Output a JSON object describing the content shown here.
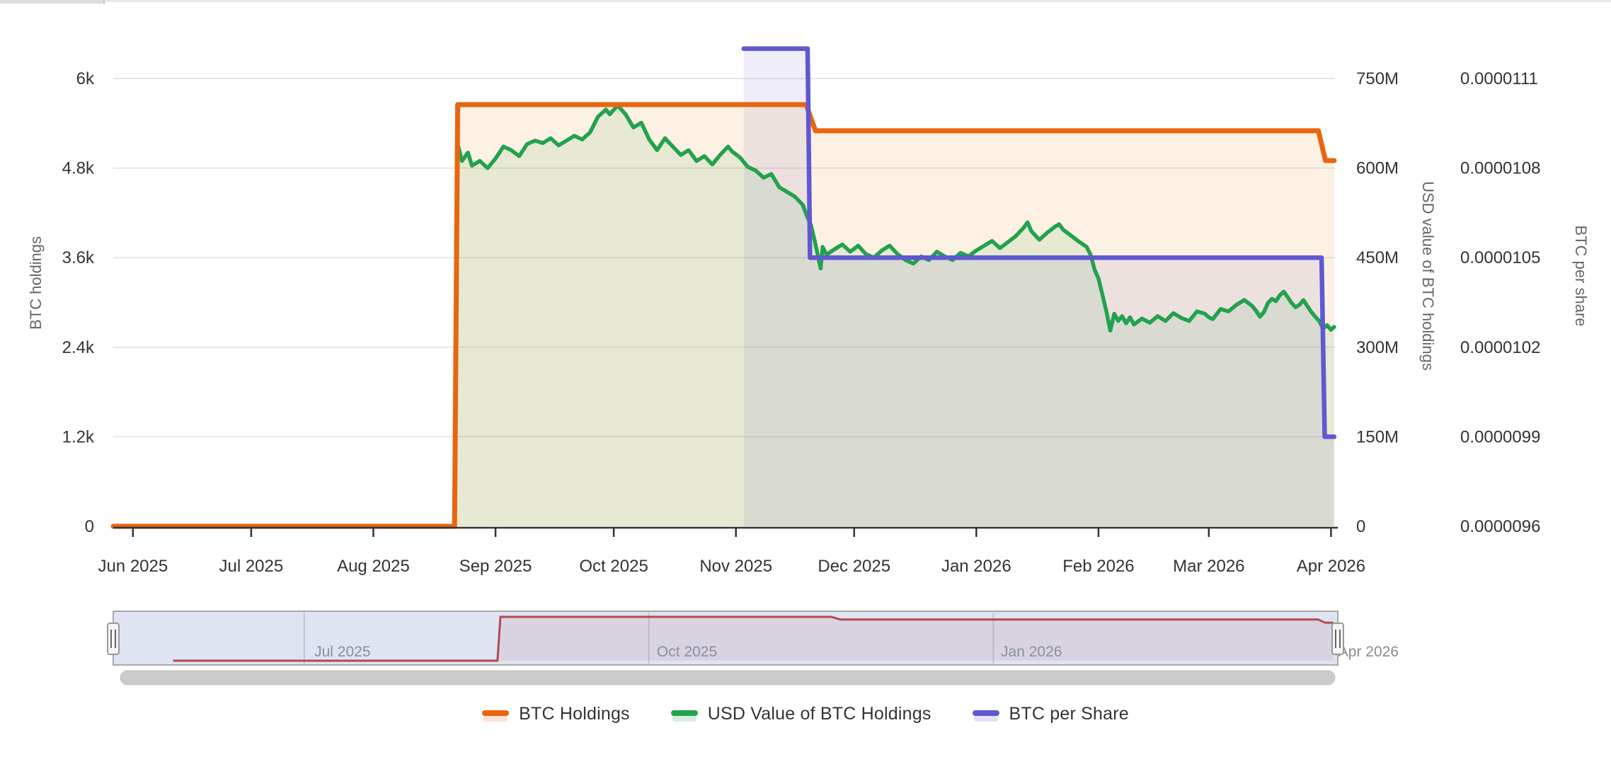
{
  "window": {
    "top_border_color": "#e7e7e7"
  },
  "chart_data": {
    "type": "line",
    "title": "",
    "x_axis": {
      "epoch": "2025-06-01",
      "unit": "days since epoch",
      "range_days": [
        -5,
        305
      ],
      "tick_days": [
        0,
        30,
        61,
        92,
        122,
        153,
        183,
        214,
        245,
        273,
        304
      ],
      "tick_labels": [
        "Jun 2025",
        "Jul 2025",
        "Aug 2025",
        "Sep 2025",
        "Oct 2025",
        "Nov 2025",
        "Dec 2025",
        "Jan 2026",
        "Feb 2026",
        "Mar 2026",
        "Apr 2026"
      ]
    },
    "y_axes": [
      {
        "id": "left",
        "title": "BTC holdings",
        "side": "left",
        "min": 0,
        "max": 6000,
        "tick_labels": [
          "0",
          "1.2k",
          "2.4k",
          "3.6k",
          "4.8k",
          "6k"
        ]
      },
      {
        "id": "usd",
        "title": "USD value of BTC holdings",
        "side": "right",
        "unit": "millions USD",
        "min": 0,
        "max": 750,
        "tick_labels": [
          "0",
          "150M",
          "300M",
          "450M",
          "600M",
          "750M"
        ]
      },
      {
        "id": "bps",
        "title": "BTC per share",
        "side": "right",
        "min": 9.6e-06,
        "max": 1.11e-05,
        "tick_labels": [
          "0.0000096",
          "0.0000099",
          "0.0000102",
          "0.0000105",
          "0.0000108",
          "0.0000111"
        ]
      }
    ],
    "grid": "horizontal-only",
    "legend_position": "bottom-center",
    "series": [
      {
        "name": "BTC Holdings",
        "axis": "left",
        "color": "#e9650f",
        "fill": "rgba(236,144,40,0.13)",
        "width": 7,
        "points": [
          [
            -5,
            0
          ],
          [
            81.6,
            0
          ],
          [
            82.4,
            5650
          ],
          [
            170.8,
            5650
          ],
          [
            173.2,
            5300
          ],
          [
            300.8,
            5300
          ],
          [
            302.6,
            4900
          ],
          [
            304.8,
            4900
          ]
        ]
      },
      {
        "name": "USD Value of BTC Holdings",
        "axis": "usd",
        "color": "#23a24d",
        "fill": "rgba(35,162,77,0.10)",
        "width": 5.5,
        "points": [
          [
            -5,
            0
          ],
          [
            81.6,
            0
          ],
          [
            82.4,
            640
          ],
          [
            83.5,
            612
          ],
          [
            85,
            626
          ],
          [
            86,
            604
          ],
          [
            88,
            612
          ],
          [
            90,
            600
          ],
          [
            92,
            616
          ],
          [
            94,
            636
          ],
          [
            96,
            630
          ],
          [
            98,
            620
          ],
          [
            100,
            640
          ],
          [
            102,
            646
          ],
          [
            104,
            642
          ],
          [
            106,
            650
          ],
          [
            108,
            638
          ],
          [
            110,
            646
          ],
          [
            112,
            654
          ],
          [
            114,
            648
          ],
          [
            116,
            660
          ],
          [
            118,
            686
          ],
          [
            120,
            698
          ],
          [
            121,
            690
          ],
          [
            123,
            705
          ],
          [
            125,
            690
          ],
          [
            127,
            668
          ],
          [
            129,
            676
          ],
          [
            131,
            648
          ],
          [
            133,
            630
          ],
          [
            135,
            650
          ],
          [
            137,
            636
          ],
          [
            139,
            622
          ],
          [
            141,
            630
          ],
          [
            143,
            612
          ],
          [
            145,
            620
          ],
          [
            147,
            606
          ],
          [
            149,
            622
          ],
          [
            151,
            636
          ],
          [
            152,
            628
          ],
          [
            154,
            618
          ],
          [
            156,
            602
          ],
          [
            158,
            596
          ],
          [
            160,
            584
          ],
          [
            162,
            590
          ],
          [
            164,
            568
          ],
          [
            166,
            560
          ],
          [
            168,
            552
          ],
          [
            170,
            538
          ],
          [
            171,
            520
          ],
          [
            172,
            505
          ],
          [
            173,
            478
          ],
          [
            174,
            447
          ],
          [
            174.5,
            432
          ],
          [
            175,
            468
          ],
          [
            176,
            455
          ],
          [
            178,
            464
          ],
          [
            180,
            472
          ],
          [
            182,
            460
          ],
          [
            184,
            470
          ],
          [
            186,
            456
          ],
          [
            188,
            450
          ],
          [
            190,
            462
          ],
          [
            192,
            470
          ],
          [
            194,
            456
          ],
          [
            196,
            446
          ],
          [
            198,
            440
          ],
          [
            200,
            452
          ],
          [
            202,
            446
          ],
          [
            204,
            460
          ],
          [
            206,
            452
          ],
          [
            208,
            446
          ],
          [
            210,
            458
          ],
          [
            212,
            452
          ],
          [
            214,
            462
          ],
          [
            216,
            470
          ],
          [
            218,
            478
          ],
          [
            220,
            466
          ],
          [
            222,
            476
          ],
          [
            224,
            486
          ],
          [
            226,
            500
          ],
          [
            227,
            509
          ],
          [
            228,
            494
          ],
          [
            230,
            480
          ],
          [
            232,
            492
          ],
          [
            234,
            502
          ],
          [
            235,
            506
          ],
          [
            236,
            497
          ],
          [
            238,
            487
          ],
          [
            240,
            477
          ],
          [
            242,
            468
          ],
          [
            243,
            455
          ],
          [
            244,
            430
          ],
          [
            245,
            415
          ],
          [
            246,
            388
          ],
          [
            247,
            360
          ],
          [
            248,
            328
          ],
          [
            249,
            356
          ],
          [
            250,
            344
          ],
          [
            251,
            352
          ],
          [
            252,
            340
          ],
          [
            253,
            350
          ],
          [
            254,
            338
          ],
          [
            256,
            348
          ],
          [
            258,
            341
          ],
          [
            260,
            352
          ],
          [
            262,
            344
          ],
          [
            264,
            357
          ],
          [
            266,
            349
          ],
          [
            268,
            344
          ],
          [
            270,
            360
          ],
          [
            272,
            356
          ],
          [
            273,
            350
          ],
          [
            274,
            347
          ],
          [
            276,
            364
          ],
          [
            278,
            360
          ],
          [
            280,
            371
          ],
          [
            282,
            379
          ],
          [
            284,
            369
          ],
          [
            285,
            361
          ],
          [
            286,
            351
          ],
          [
            287,
            359
          ],
          [
            288,
            374
          ],
          [
            289,
            381
          ],
          [
            290,
            377
          ],
          [
            291,
            387
          ],
          [
            292,
            393
          ],
          [
            293,
            384
          ],
          [
            294,
            374
          ],
          [
            295,
            367
          ],
          [
            296,
            371
          ],
          [
            297,
            379
          ],
          [
            298,
            369
          ],
          [
            299,
            359
          ],
          [
            300,
            351
          ],
          [
            301,
            344
          ],
          [
            302,
            331
          ],
          [
            303,
            337
          ],
          [
            304,
            329
          ],
          [
            304.8,
            334
          ]
        ]
      },
      {
        "name": "BTC per Share",
        "axis": "bps",
        "color": "#5f58d0",
        "fill": "rgba(95,88,208,0.10)",
        "width": 6.5,
        "points": [
          [
            155,
            1.12e-05
          ],
          [
            171.2,
            1.12e-05
          ],
          [
            171.8,
            1.05e-05
          ],
          [
            301.6,
            1.05e-05
          ],
          [
            302.4,
            9.9e-06
          ],
          [
            304.8,
            9.9e-06
          ]
        ]
      }
    ]
  },
  "navigator": {
    "range_days": [
      -21,
      306
    ],
    "tick_labels": [
      {
        "text": "Jul 2025",
        "day": 30
      },
      {
        "text": "Oct 2025",
        "day": 122
      },
      {
        "text": "Jan 2026",
        "day": 214
      },
      {
        "text": "Apr 2026",
        "day": 304
      }
    ],
    "mask_color": "rgba(105,130,195,0.22)",
    "outline_color": "#a9a9a9",
    "gridline_color": "rgba(110,120,165,0.28)",
    "series_color": "#b5494e",
    "series_fill": "rgba(181,73,78,0.10)",
    "series_max": 5650,
    "handle": {
      "fill": "#f5f5f5",
      "stroke": "#999999",
      "grip_color": "#666666"
    },
    "scrollbar_color": "#cbcbcb",
    "label_color_inside": "#8a8f9f",
    "label_color_outside": "#8c8c8c"
  },
  "legend": {
    "items": [
      {
        "label": "BTC Holdings",
        "color": "#e9650f"
      },
      {
        "label": "USD Value of BTC Holdings",
        "color": "#23a24d"
      },
      {
        "label": "BTC per Share",
        "color": "#5f58d0"
      }
    ]
  },
  "styles": {
    "tick_label_color": "#333333",
    "axis_title_color": "#666666",
    "grid_color": "#e6e6e6",
    "axis_line_color": "#333333"
  }
}
